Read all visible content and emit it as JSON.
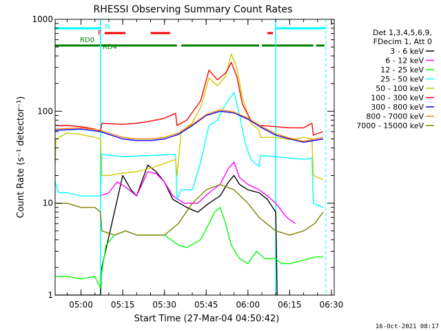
{
  "chart_data": {
    "type": "line",
    "title": "RHESSI Observing Summary Count Rates",
    "xlabel": "Start Time (27-Mar-04 04:50:42)",
    "ylabel": "Count Rate (s⁻¹ detector⁻¹)",
    "y_scale": "log",
    "ylim": [
      1,
      1000
    ],
    "xlim_minutes": [
      "04:50:42",
      "06:31:00"
    ],
    "x_ticks": [
      "05:00",
      "05:15",
      "05:30",
      "05:45",
      "06:00",
      "06:15",
      "06:30"
    ],
    "y_ticks": [
      "1",
      "10",
      "100",
      "1000"
    ],
    "legend_header": [
      "Det 1,3,4,5,6,9,",
      "FDecim 1, Att 0"
    ],
    "legend_placement": "right",
    "grid": false,
    "footer_date": "16-Oct-2021 08:17",
    "flags": {
      "N_label": "N",
      "F_label": "F",
      "RD0_label": "RD0",
      "RD4_label": "RD4",
      "N_segments": [
        [
          "04:50:42",
          "05:07:00"
        ],
        [
          "06:10:00",
          "06:28:00"
        ]
      ],
      "F_segments": [
        [
          "05:08:30",
          "05:16:00"
        ],
        [
          "05:25:00",
          "05:32:00"
        ],
        [
          "06:07:00",
          "06:09:00"
        ]
      ],
      "RD0_segments": [
        [
          "04:50:42",
          "05:07:00"
        ]
      ],
      "RD4_segments": [
        [
          "05:07:00",
          "05:34:30"
        ],
        [
          "05:36:00",
          "06:04:00"
        ],
        [
          "06:05:00",
          "06:23:30"
        ],
        [
          "06:24:30",
          "06:27:30"
        ]
      ],
      "N_color": "#00ffff",
      "F_color": "#ff0000",
      "RD_color": "#008000"
    },
    "vertical_lines": [
      "05:07:00",
      "06:10:00",
      "06:28:00"
    ],
    "series": [
      {
        "name": "3 - 6 keV",
        "color": "#000000",
        "points": [
          [
            "04:50:42",
            0
          ],
          [
            "05:07:00",
            0
          ],
          [
            "05:07:30",
            2
          ],
          [
            "05:15:00",
            20
          ],
          [
            "05:18:00",
            14
          ],
          [
            "05:20:00",
            12
          ],
          [
            "05:24:00",
            26
          ],
          [
            "05:27:00",
            22
          ],
          [
            "05:30:00",
            17
          ],
          [
            "05:33:00",
            11
          ],
          [
            "05:38:00",
            9
          ],
          [
            "05:42:00",
            8
          ],
          [
            "05:46:00",
            10
          ],
          [
            "05:50:00",
            12
          ],
          [
            "05:53:00",
            17
          ],
          [
            "05:55:00",
            20
          ],
          [
            "05:57:00",
            16
          ],
          [
            "06:00:00",
            14
          ],
          [
            "06:04:00",
            13
          ],
          [
            "06:07:00",
            11
          ],
          [
            "06:10:00",
            8
          ],
          [
            "06:10:30",
            0
          ]
        ]
      },
      {
        "name": "6 - 12 keV",
        "color": "#ff00ff",
        "points": [
          [
            "05:07:00",
            12
          ],
          [
            "05:10:00",
            13
          ],
          [
            "05:13:00",
            17
          ],
          [
            "05:16:00",
            15
          ],
          [
            "05:20:00",
            12
          ],
          [
            "05:24:00",
            22
          ],
          [
            "05:27:00",
            21
          ],
          [
            "05:30:00",
            17
          ],
          [
            "05:33:00",
            12
          ],
          [
            "05:37:00",
            10
          ],
          [
            "05:42:00",
            10
          ],
          [
            "05:46:00",
            13
          ],
          [
            "05:50:00",
            16
          ],
          [
            "05:53:00",
            24
          ],
          [
            "05:55:00",
            28
          ],
          [
            "05:57:00",
            19
          ],
          [
            "06:00:00",
            16
          ],
          [
            "06:04:00",
            14
          ],
          [
            "06:07:00",
            12
          ],
          [
            "06:10:00",
            10
          ],
          [
            "06:14:00",
            7
          ],
          [
            "06:17:00",
            6
          ]
        ]
      },
      {
        "name": "12 - 25 keV",
        "color": "#00ff00",
        "points": [
          [
            "04:50:42",
            1.6
          ],
          [
            "04:55:00",
            1.6
          ],
          [
            "05:00:00",
            1.5
          ],
          [
            "05:05:00",
            1.6
          ],
          [
            "05:07:00",
            1.2
          ],
          [
            "05:07:30",
            1.8
          ],
          [
            "05:09:00",
            3.5
          ],
          [
            "05:12:00",
            4.5
          ],
          [
            "05:16:00",
            5
          ],
          [
            "05:20:00",
            4.5
          ],
          [
            "05:25:00",
            4.5
          ],
          [
            "05:30:00",
            4.5
          ],
          [
            "05:35:00",
            3.5
          ],
          [
            "05:38:00",
            3.3
          ],
          [
            "05:43:00",
            4
          ],
          [
            "05:46:00",
            6
          ],
          [
            "05:48:00",
            8
          ],
          [
            "05:50:00",
            9
          ],
          [
            "05:52:00",
            6
          ],
          [
            "05:54:00",
            3.5
          ],
          [
            "05:57:00",
            2.5
          ],
          [
            "06:00:00",
            2.2
          ],
          [
            "06:03:00",
            3
          ],
          [
            "06:06:00",
            2.5
          ],
          [
            "06:10:00",
            2.5
          ],
          [
            "06:12:00",
            2.2
          ],
          [
            "06:15:00",
            2.2
          ],
          [
            "06:20:00",
            2.4
          ],
          [
            "06:24:00",
            2.6
          ],
          [
            "06:27:00",
            2.6
          ]
        ]
      },
      {
        "name": "25 - 50 keV",
        "color": "#00ffff",
        "points": [
          [
            "04:50:42",
            17
          ],
          [
            "04:52:00",
            13
          ],
          [
            "04:55:00",
            13
          ],
          [
            "05:00:00",
            12
          ],
          [
            "05:05:00",
            12
          ],
          [
            "05:07:00",
            12
          ],
          [
            "05:07:30",
            34
          ],
          [
            "05:15:00",
            32
          ],
          [
            "05:25:00",
            33
          ],
          [
            "05:34:00",
            34
          ],
          [
            "05:34:30",
            11
          ],
          [
            "05:36:00",
            14
          ],
          [
            "05:40:00",
            14
          ],
          [
            "05:43:00",
            28
          ],
          [
            "05:46:00",
            70
          ],
          [
            "05:49:00",
            80
          ],
          [
            "05:52:00",
            120
          ],
          [
            "05:55:00",
            160
          ],
          [
            "05:57:00",
            90
          ],
          [
            "05:59:00",
            45
          ],
          [
            "06:01:00",
            30
          ],
          [
            "06:04:00",
            25
          ],
          [
            "06:04:30",
            33
          ],
          [
            "06:10:00",
            32
          ],
          [
            "06:15:00",
            31
          ],
          [
            "06:20:00",
            30
          ],
          [
            "06:23:00",
            31
          ],
          [
            "06:23:30",
            10
          ],
          [
            "06:27:00",
            9
          ]
        ]
      },
      {
        "name": "50 - 100 keV",
        "color": "#cccc00",
        "points": [
          [
            "04:50:42",
            26
          ],
          [
            "04:51:00",
            50
          ],
          [
            "04:55:00",
            58
          ],
          [
            "05:00:00",
            56
          ],
          [
            "05:05:00",
            52
          ],
          [
            "05:07:00",
            50
          ],
          [
            "05:07:30",
            20
          ],
          [
            "05:10:00",
            20
          ],
          [
            "05:14:00",
            21
          ],
          [
            "05:20:00",
            22
          ],
          [
            "05:25:00",
            24
          ],
          [
            "05:30:00",
            27
          ],
          [
            "05:34:00",
            30
          ],
          [
            "05:34:30",
            20
          ],
          [
            "05:36:00",
            60
          ],
          [
            "05:40:00",
            75
          ],
          [
            "05:43:00",
            110
          ],
          [
            "05:46:00",
            230
          ],
          [
            "05:49:00",
            190
          ],
          [
            "05:52:00",
            240
          ],
          [
            "05:54:00",
            420
          ],
          [
            "05:56:00",
            300
          ],
          [
            "05:58:00",
            140
          ],
          [
            "06:01:00",
            75
          ],
          [
            "06:04:00",
            62
          ],
          [
            "06:04:30",
            52
          ],
          [
            "06:10:00",
            52
          ],
          [
            "06:15:00",
            49
          ],
          [
            "06:20:00",
            52
          ],
          [
            "06:23:00",
            50
          ],
          [
            "06:23:30",
            20
          ],
          [
            "06:27:00",
            18
          ]
        ]
      },
      {
        "name": "100 - 300 keV",
        "color": "#ff0000",
        "points": [
          [
            "04:50:42",
            70
          ],
          [
            "04:55:00",
            70
          ],
          [
            "05:00:00",
            68
          ],
          [
            "05:05:00",
            64
          ],
          [
            "05:07:00",
            60
          ],
          [
            "05:07:30",
            74
          ],
          [
            "05:15:00",
            72
          ],
          [
            "05:20:00",
            74
          ],
          [
            "05:25:00",
            78
          ],
          [
            "05:30:00",
            84
          ],
          [
            "05:34:00",
            95
          ],
          [
            "05:34:30",
            70
          ],
          [
            "05:38:00",
            80
          ],
          [
            "05:43:00",
            130
          ],
          [
            "05:46:00",
            280
          ],
          [
            "05:49:00",
            220
          ],
          [
            "05:52:00",
            260
          ],
          [
            "05:54:00",
            340
          ],
          [
            "05:56:00",
            240
          ],
          [
            "05:58:00",
            120
          ],
          [
            "06:01:00",
            80
          ],
          [
            "06:04:00",
            70
          ],
          [
            "06:04:30",
            70
          ],
          [
            "06:10:00",
            68
          ],
          [
            "06:15:00",
            66
          ],
          [
            "06:20:00",
            66
          ],
          [
            "06:23:00",
            74
          ],
          [
            "06:23:30",
            55
          ],
          [
            "06:27:00",
            60
          ]
        ]
      },
      {
        "name": "300 - 800 keV",
        "color": "#0000ff",
        "points": [
          [
            "04:50:42",
            62
          ],
          [
            "05:00:00",
            64
          ],
          [
            "05:07:00",
            60
          ],
          [
            "05:15:00",
            50
          ],
          [
            "05:20:00",
            48
          ],
          [
            "05:25:00",
            48
          ],
          [
            "05:30:00",
            50
          ],
          [
            "05:35:00",
            56
          ],
          [
            "05:40:00",
            70
          ],
          [
            "05:45:00",
            90
          ],
          [
            "05:50:00",
            100
          ],
          [
            "05:55:00",
            96
          ],
          [
            "06:00:00",
            82
          ],
          [
            "06:05:00",
            66
          ],
          [
            "06:10:00",
            55
          ],
          [
            "06:15:00",
            50
          ],
          [
            "06:20:00",
            46
          ],
          [
            "06:27:00",
            50
          ]
        ]
      },
      {
        "name": "800 - 7000 keV",
        "color": "#ff8000",
        "points": [
          [
            "04:50:42",
            64
          ],
          [
            "05:00:00",
            66
          ],
          [
            "05:07:00",
            62
          ],
          [
            "05:15:00",
            52
          ],
          [
            "05:20:00",
            50
          ],
          [
            "05:25:00",
            50
          ],
          [
            "05:30:00",
            52
          ],
          [
            "05:35:00",
            58
          ],
          [
            "05:40:00",
            72
          ],
          [
            "05:45:00",
            92
          ],
          [
            "05:50:00",
            104
          ],
          [
            "05:55:00",
            98
          ],
          [
            "06:00:00",
            84
          ],
          [
            "06:05:00",
            68
          ],
          [
            "06:10:00",
            57
          ],
          [
            "06:15:00",
            51
          ],
          [
            "06:20:00",
            47
          ],
          [
            "06:27:00",
            52
          ]
        ]
      },
      {
        "name": "7000 - 15000 keV",
        "color": "#808000",
        "points": [
          [
            "04:50:42",
            10
          ],
          [
            "04:55:00",
            10
          ],
          [
            "05:00:00",
            9
          ],
          [
            "05:05:00",
            9
          ],
          [
            "05:07:00",
            8
          ],
          [
            "05:07:30",
            5
          ],
          [
            "05:12:00",
            4.5
          ],
          [
            "05:16:00",
            5
          ],
          [
            "05:20:00",
            4.5
          ],
          [
            "05:25:00",
            4.5
          ],
          [
            "05:30:00",
            4.5
          ],
          [
            "05:35:00",
            6
          ],
          [
            "05:40:00",
            10
          ],
          [
            "05:45:00",
            14
          ],
          [
            "05:50:00",
            16
          ],
          [
            "05:55:00",
            14
          ],
          [
            "06:00:00",
            10
          ],
          [
            "06:04:00",
            7
          ],
          [
            "06:10:00",
            5
          ],
          [
            "06:15:00",
            4.5
          ],
          [
            "06:20:00",
            5
          ],
          [
            "06:24:00",
            6
          ],
          [
            "06:27:00",
            8
          ]
        ]
      }
    ]
  }
}
